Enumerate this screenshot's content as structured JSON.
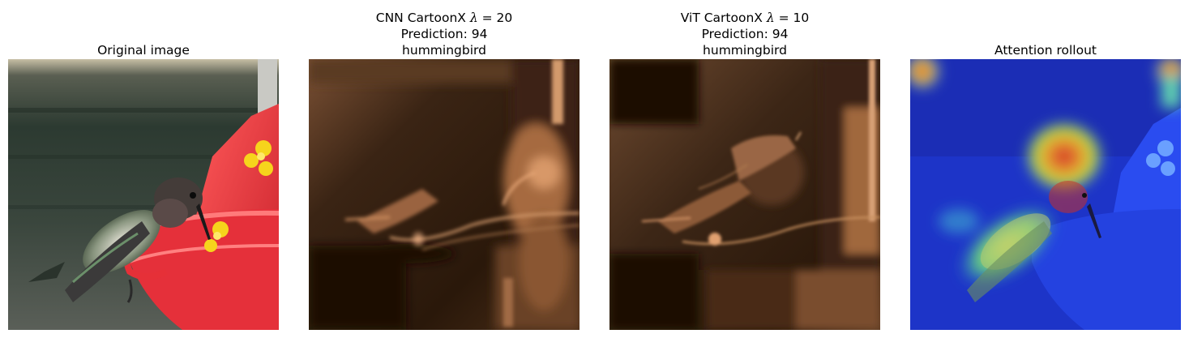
{
  "figure": {
    "panels": [
      {
        "id": "original",
        "title_lines": [
          "Original image"
        ]
      },
      {
        "id": "cnn-cartoonx",
        "title_prefix": "CNN CartoonX ",
        "lambda_symbol": "λ",
        "lambda_value": " = 20",
        "title_lines": [
          "Prediction: 94",
          "hummingbird"
        ]
      },
      {
        "id": "vit-cartoonx",
        "title_prefix": "ViT CartoonX ",
        "lambda_symbol": "λ",
        "lambda_value": " = 10",
        "title_lines": [
          "Prediction: 94",
          "hummingbird"
        ]
      },
      {
        "id": "attention-rollout",
        "title_lines": [
          "Attention rollout"
        ]
      }
    ],
    "colors": {
      "feeder_red": "#e8343a",
      "feeder_yellow": "#f4d21a",
      "background_dark_green": "#2f3a33",
      "copper_dark": "#1a0d05",
      "copper_light": "#e8a878",
      "jet_blue": "#1f3bd6",
      "jet_red": "#e0261b"
    }
  }
}
